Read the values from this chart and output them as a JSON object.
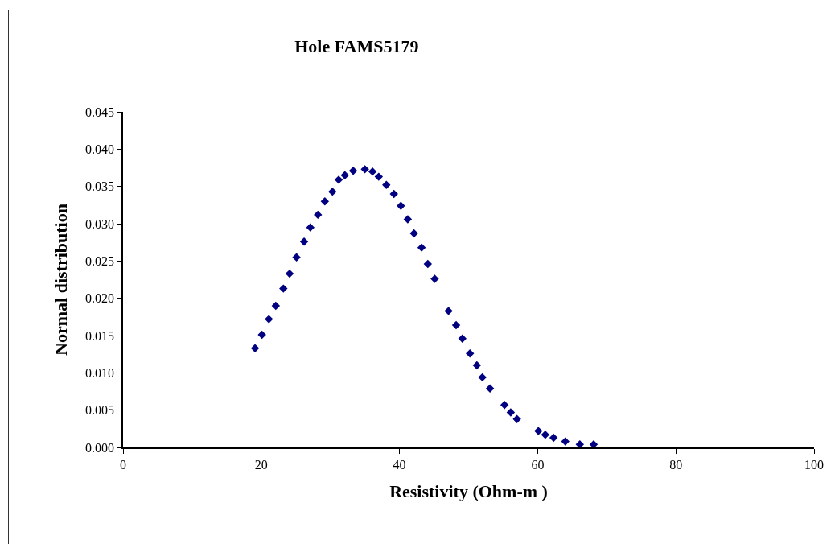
{
  "chart_data": {
    "type": "scatter",
    "title": "Hole FAMS5179",
    "xlabel": "Resistivity (Ohm-m )",
    "ylabel": "Normal distribution",
    "x": [
      19.1,
      20.1,
      21.1,
      22.1,
      23.2,
      24.1,
      25.1,
      26.2,
      27.1,
      28.2,
      29.2,
      30.3,
      31.2,
      32.1,
      33.3,
      35.0,
      36.1,
      37.0,
      38.1,
      39.2,
      40.2,
      41.2,
      42.1,
      43.2,
      44.1,
      45.1,
      47.1,
      48.2,
      49.1,
      50.2,
      51.2,
      52.0,
      53.1,
      55.2,
      56.1,
      57.0,
      60.1,
      61.1,
      62.3,
      64.0,
      66.1,
      68.1
    ],
    "series": [
      {
        "color": "#000080",
        "values": [
          0.0133,
          0.0151,
          0.0172,
          0.019,
          0.0213,
          0.0233,
          0.0255,
          0.0276,
          0.0295,
          0.0312,
          0.033,
          0.0343,
          0.0359,
          0.0365,
          0.0371,
          0.0373,
          0.037,
          0.0363,
          0.0352,
          0.034,
          0.0324,
          0.0306,
          0.0287,
          0.0268,
          0.0246,
          0.0226,
          0.0183,
          0.0164,
          0.0146,
          0.0126,
          0.011,
          0.0094,
          0.0079,
          0.0057,
          0.0047,
          0.0038,
          0.0022,
          0.0017,
          0.0013,
          0.0008,
          0.0004,
          0.0004
        ]
      }
    ],
    "xlim": [
      0,
      100
    ],
    "xticks": [
      0,
      20,
      40,
      60,
      80,
      100
    ],
    "ylim": [
      0,
      0.045
    ],
    "yticks": [
      {
        "value": 0,
        "label": "0.000"
      },
      0.005,
      {
        "value": 0.01,
        "label": "0.010"
      },
      0.015,
      {
        "value": 0.02,
        "label": "0.020"
      },
      0.025,
      {
        "value": 0.03,
        "label": "0.030"
      },
      0.035,
      {
        "value": 0.04,
        "label": "0.040"
      },
      0.045
    ],
    "grid": false,
    "legend": false,
    "marker": "diamond"
  }
}
